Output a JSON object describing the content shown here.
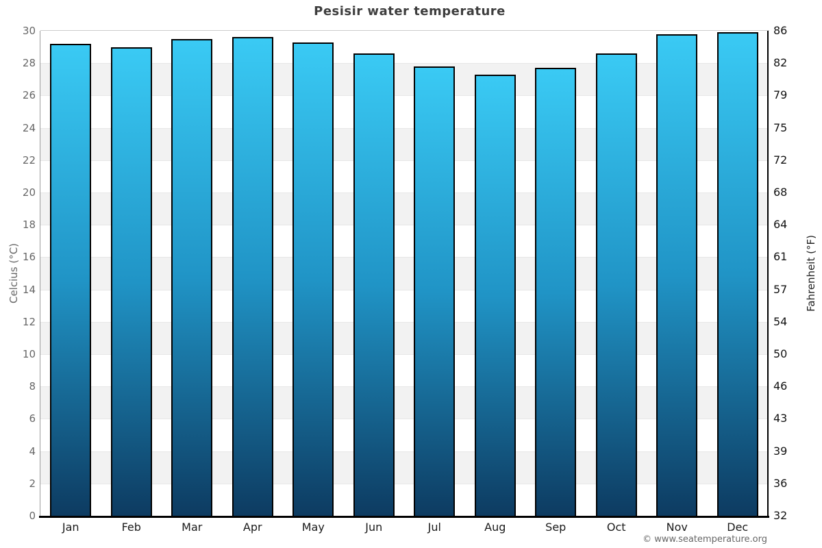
{
  "chart_data": {
    "type": "bar",
    "title": "Pesisir water temperature",
    "categories": [
      "Jan",
      "Feb",
      "Mar",
      "Apr",
      "May",
      "Jun",
      "Jul",
      "Aug",
      "Sep",
      "Oct",
      "Nov",
      "Dec"
    ],
    "values": [
      29.2,
      29.0,
      29.5,
      29.6,
      29.3,
      28.6,
      27.8,
      27.3,
      27.7,
      28.6,
      29.8,
      29.9
    ],
    "unit": "°C",
    "ylabel_left": "Celcius (°C)",
    "ylabel_right": "Fahrenheit (°F)",
    "ylim": [
      0,
      30
    ],
    "yticks": [
      {
        "c": 0,
        "f": "32"
      },
      {
        "c": 2,
        "f": "36"
      },
      {
        "c": 4,
        "f": "39"
      },
      {
        "c": 6,
        "f": "43"
      },
      {
        "c": 8,
        "f": "46"
      },
      {
        "c": 10,
        "f": "50"
      },
      {
        "c": 12,
        "f": "54"
      },
      {
        "c": 14,
        "f": "57"
      },
      {
        "c": 16,
        "f": "61"
      },
      {
        "c": 18,
        "f": "64"
      },
      {
        "c": 20,
        "f": "68"
      },
      {
        "c": 22,
        "f": "72"
      },
      {
        "c": 24,
        "f": "75"
      },
      {
        "c": 26,
        "f": "79"
      },
      {
        "c": 28,
        "f": "82"
      },
      {
        "c": 30,
        "f": "86"
      }
    ],
    "grid": "alternating horizontal bands every 2°C, white and light gray",
    "legend": "none",
    "colors": {
      "bar_gradient_top": "#3acaf4",
      "bar_gradient_mid": "#2094c6",
      "bar_gradient_bottom": "#0d3b61",
      "band_gray": "#f2f2f2",
      "band_white": "#ffffff",
      "bar_border": "#000000"
    }
  },
  "footer": {
    "copyright": "© www.seatemperature.org"
  }
}
